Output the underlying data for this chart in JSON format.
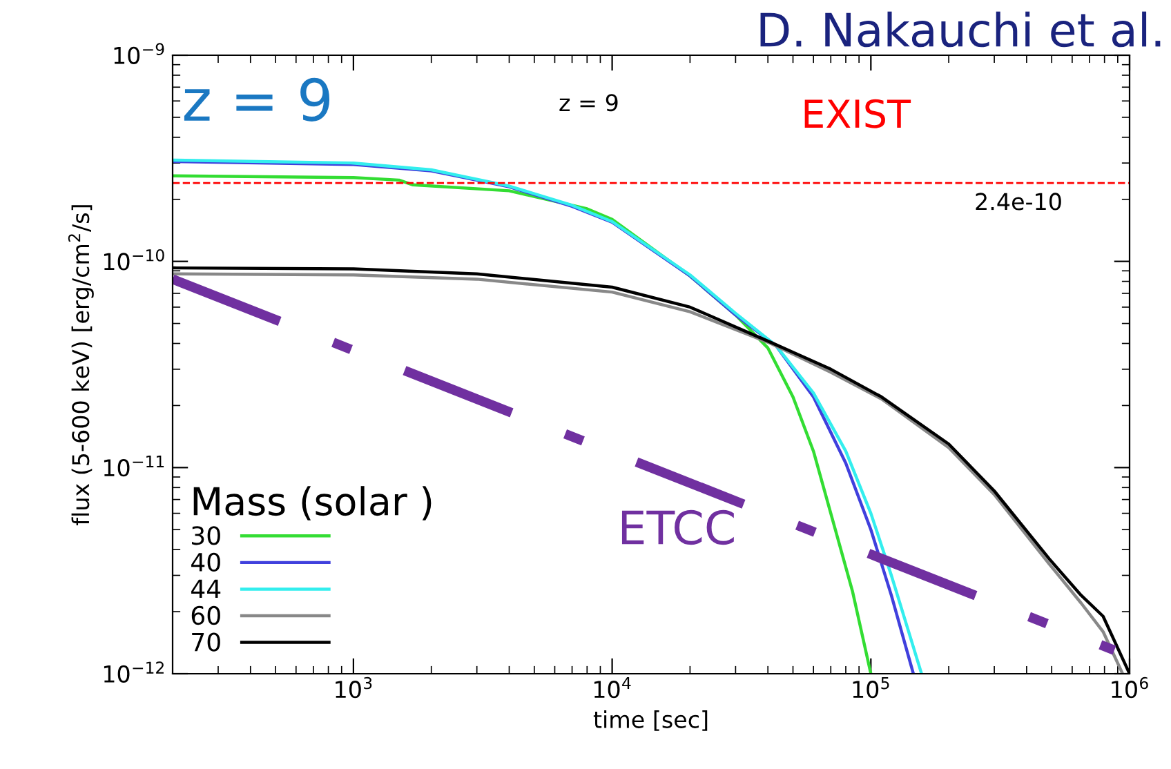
{
  "chart_data": {
    "type": "line",
    "xlabel": "time [sec]",
    "ylabel": "flux (5-600 keV) [erg/cm$^{2}$/s]",
    "legend_title": "Mass (solar )",
    "legend": "bottom left",
    "log": "xy",
    "grid": false,
    "xlim": [
      200,
      1000000
    ],
    "ylim": [
      1e-12,
      1e-09
    ],
    "xticks": [
      {
        "value": 1000,
        "label": "10$^{3}$"
      },
      {
        "value": 10000,
        "label": "10$^{4}$"
      },
      {
        "value": 100000,
        "label": "10$^{5}$"
      },
      {
        "value": 1000000,
        "label": "10$^{6}$"
      }
    ],
    "yticks": [
      {
        "value": 1e-12,
        "label": "10$^{−12}$"
      },
      {
        "value": 1e-11,
        "label": "10$^{−11}$"
      },
      {
        "value": 1e-10,
        "label": "10$^{−10}$"
      },
      {
        "value": 1e-09,
        "label": "10$^{−9}$"
      }
    ],
    "series": [
      {
        "name": "30",
        "color": "#33dd33",
        "x": [
          200,
          1000,
          1500,
          1700,
          4000,
          8000,
          10000,
          20000,
          30000,
          40000,
          50000,
          60000,
          70000,
          85000,
          100000
        ],
        "values": [
          2.6e-10,
          2.55e-10,
          2.48e-10,
          2.35e-10,
          2.2e-10,
          1.8e-10,
          1.6e-10,
          8.5e-11,
          5.5e-11,
          3.8e-11,
          2.2e-11,
          1.2e-11,
          6e-12,
          2.5e-12,
          1e-12
        ]
      },
      {
        "name": "40",
        "color": "#4040dd",
        "x": [
          200,
          1000,
          2000,
          4000,
          7000,
          10000,
          20000,
          30000,
          43000,
          60000,
          80000,
          100000,
          120000,
          146000
        ],
        "values": [
          3.05e-10,
          2.95e-10,
          2.75e-10,
          2.3e-10,
          1.85e-10,
          1.55e-10,
          8.5e-11,
          5.5e-11,
          3.9e-11,
          2.2e-11,
          1.05e-11,
          5e-12,
          2.4e-12,
          1e-12
        ]
      },
      {
        "name": "44",
        "color": "#33eeee",
        "x": [
          200,
          1000,
          2000,
          4000,
          7000,
          10000,
          20000,
          30000,
          43000,
          60000,
          80000,
          100000,
          120000,
          140000,
          157000
        ],
        "values": [
          3.1e-10,
          3e-10,
          2.78e-10,
          2.32e-10,
          1.87e-10,
          1.56e-10,
          8.6e-11,
          5.6e-11,
          3.9e-11,
          2.3e-11,
          1.2e-11,
          6e-12,
          3e-12,
          1.6e-12,
          1e-12
        ]
      },
      {
        "name": "60",
        "color": "#888888",
        "x": [
          200,
          1000,
          3000,
          10000,
          20000,
          41000,
          70000,
          110000,
          200000,
          300000,
          490000,
          650000,
          790000,
          940000
        ],
        "values": [
          8.7e-11,
          8.6e-11,
          8.2e-11,
          7.1e-11,
          5.7e-11,
          4e-11,
          2.9e-11,
          2.15e-11,
          1.25e-11,
          7.4e-12,
          3.4e-12,
          2.2e-12,
          1.6e-12,
          1e-12
        ]
      },
      {
        "name": "70",
        "color": "#000000",
        "x": [
          200,
          1000,
          3000,
          10000,
          20000,
          41000,
          70000,
          110000,
          200000,
          300000,
          490000,
          650000,
          790000,
          1000000
        ],
        "values": [
          9.3e-11,
          9.2e-11,
          8.7e-11,
          7.5e-11,
          6e-11,
          4.05e-11,
          3e-11,
          2.2e-11,
          1.3e-11,
          7.7e-12,
          3.6e-12,
          2.4e-12,
          1.9e-12,
          1e-12
        ]
      },
      {
        "color": "#7030a0",
        "line_style": "dashdot",
        "x": [
          200,
          873000
        ],
        "values": [
          8.2e-11,
          1.3e-12
        ]
      }
    ],
    "ref_lines": [
      {
        "axis": "y",
        "value": 2.4e-10,
        "label": "2.4e-10",
        "color": "#ff0000",
        "line_style": "dashed"
      }
    ],
    "annotations": [
      "z = 9",
      "z = 9",
      "EXIST",
      "ETCC",
      "D. Nakauchi et al."
    ]
  }
}
